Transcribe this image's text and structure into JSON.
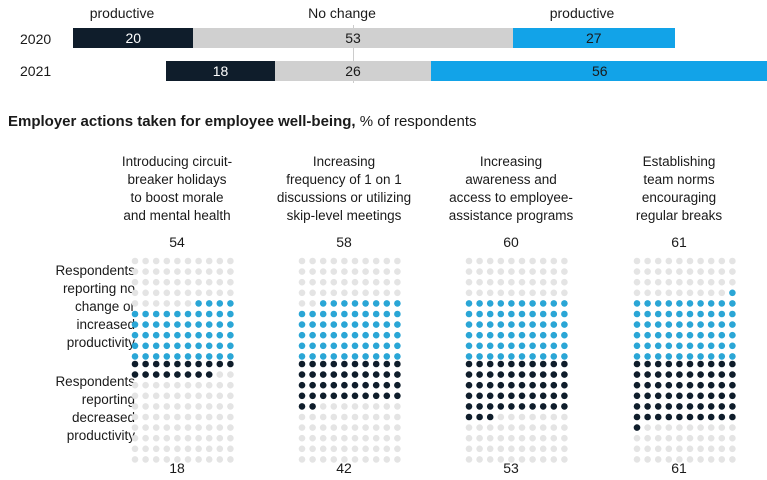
{
  "top_chart": {
    "labels": {
      "left": "productive",
      "middle": "No change",
      "right": "productive"
    },
    "rows": [
      {
        "year": "2020",
        "values": [
          20,
          53,
          27
        ]
      },
      {
        "year": "2021",
        "values": [
          18,
          26,
          56
        ]
      }
    ]
  },
  "section_title": {
    "bold": "Employer actions taken for employee well-being,",
    "normal": " % of respondents"
  },
  "row_labels": {
    "top": [
      "Respondents",
      "reporting no",
      "change or",
      "increased",
      "productivity"
    ],
    "bottom": [
      "Respondents",
      "reporting",
      "decreased",
      "productivity"
    ]
  },
  "columns": [
    {
      "title": [
        "Introducing circuit-",
        "breaker holidays",
        "to boost morale",
        "and mental health"
      ],
      "top_value": "54",
      "bottom_value": "18"
    },
    {
      "title": [
        "Increasing",
        "frequency of 1 on 1",
        "discussions or utilizing",
        "skip-level meetings"
      ],
      "top_value": "58",
      "bottom_value": "42"
    },
    {
      "title": [
        "Increasing",
        "awareness and",
        "access to employee-",
        "assistance programs"
      ],
      "top_value": "60",
      "bottom_value": "53"
    },
    {
      "title": [
        "Establishing",
        "team norms",
        "encouraging",
        "regular breaks"
      ],
      "top_value": "61",
      "bottom_value": "61"
    }
  ],
  "colors": {
    "dark": "#0f1d2b",
    "gray": "#d0d0d0",
    "blue": "#12a3e8",
    "dot_empty": "#e4e4e4",
    "dot_blue": "#2aa6d6",
    "dot_dark": "#0f1d2b"
  },
  "chart_data": [
    {
      "type": "bar",
      "categories": [
        "2020",
        "2021"
      ],
      "series": [
        {
          "name": "productive",
          "values": [
            20,
            18
          ]
        },
        {
          "name": "No change",
          "values": [
            53,
            26
          ]
        },
        {
          "name": "productive",
          "values": [
            27,
            56
          ]
        }
      ]
    },
    {
      "type": "bar",
      "categories": [
        "Introducing circuit-breaker holidays to boost morale and mental health",
        "Increasing frequency of 1 on 1 discussions or utilizing skip-level meetings",
        "Increasing awareness and access to employee-assistance programs",
        "Establishing team norms encouraging regular breaks"
      ],
      "series": [
        {
          "name": "Respondents reporting no change or increased productivity",
          "values": [
            54,
            58,
            60,
            61
          ]
        },
        {
          "name": "Respondents reporting decreased productivity",
          "values": [
            18,
            42,
            53,
            61
          ]
        }
      ]
    }
  ]
}
